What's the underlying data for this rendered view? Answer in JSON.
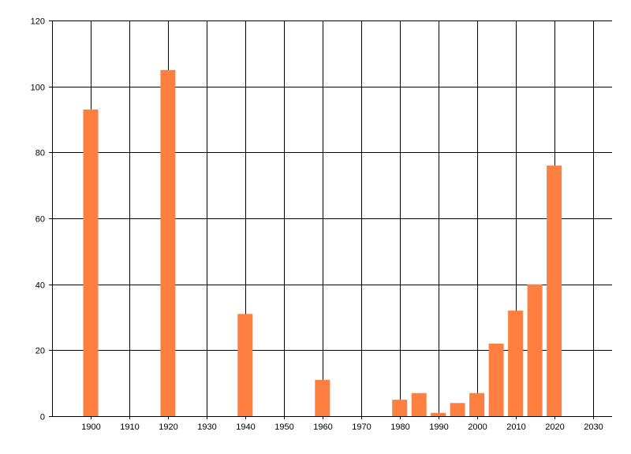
{
  "chart_data": {
    "type": "bar",
    "x": [
      1900,
      1920,
      1940,
      1960,
      1980,
      1985,
      1990,
      1995,
      2000,
      2005,
      2010,
      2015,
      2020
    ],
    "values": [
      93,
      105,
      31,
      11,
      5,
      7,
      1,
      4,
      7,
      22,
      32,
      40,
      76
    ],
    "xlim": [
      1890,
      2035
    ],
    "ylim": [
      0,
      120
    ],
    "x_ticks": [
      1900,
      1910,
      1920,
      1930,
      1940,
      1950,
      1960,
      1970,
      1980,
      1990,
      2000,
      2010,
      2020,
      2030
    ],
    "y_ticks": [
      0,
      20,
      40,
      60,
      80,
      100,
      120
    ],
    "grid": true,
    "bar_color": "#FF7F40",
    "grid_color": "#000000",
    "title": "",
    "xlabel": "",
    "ylabel": ""
  }
}
